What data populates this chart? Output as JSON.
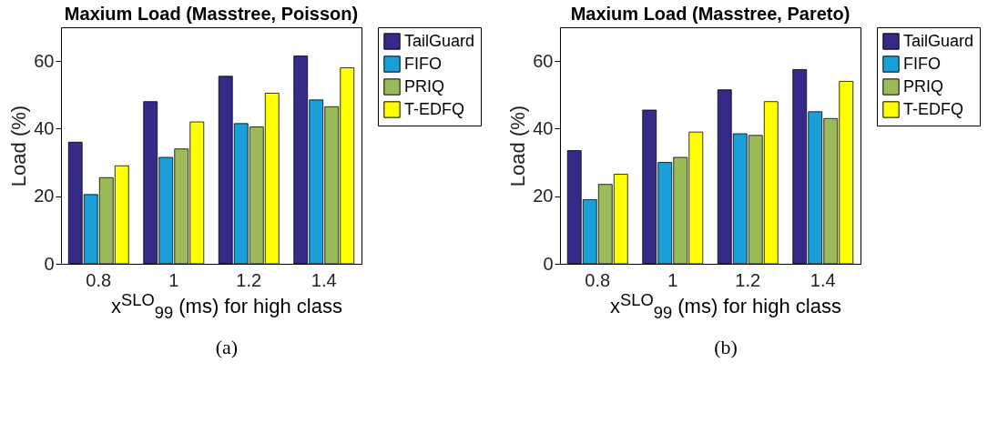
{
  "chart_data": [
    {
      "type": "bar",
      "title": "Maxium Load (Masstree, Poisson)",
      "xlabel": "x$^{SLO}$$_{99}$ (ms) for high class",
      "ylabel": "Load (%)",
      "categories": [
        "0.8",
        "1",
        "1.2",
        "1.4"
      ],
      "ylim": [
        0,
        70
      ],
      "yticks": [
        0,
        20,
        40,
        60
      ],
      "grid": false,
      "legend": "right",
      "annotations": [
        "(a)"
      ],
      "series": [
        {
          "name": "TailGuard",
          "color": "#352a87",
          "values": [
            36,
            48,
            55.5,
            61.5
          ]
        },
        {
          "name": "FIFO",
          "color": "#1a9fd9",
          "values": [
            20.5,
            31.5,
            41.5,
            48.5
          ]
        },
        {
          "name": "PRIQ",
          "color": "#9bbb59",
          "values": [
            25.5,
            34,
            40.5,
            46.5
          ]
        },
        {
          "name": "T-EDFQ",
          "color": "#ffff00",
          "values": [
            29,
            42,
            50.5,
            58
          ]
        }
      ]
    },
    {
      "type": "bar",
      "title": "Maxium Load (Masstree, Pareto)",
      "xlabel": "x$^{SLO}$$_{99}$ (ms) for high class",
      "ylabel": "Load (%)",
      "categories": [
        "0.8",
        "1",
        "1.2",
        "1.4"
      ],
      "ylim": [
        0,
        70
      ],
      "yticks": [
        0,
        20,
        40,
        60
      ],
      "grid": false,
      "legend": "right",
      "annotations": [
        "(b)"
      ],
      "series": [
        {
          "name": "TailGuard",
          "color": "#352a87",
          "values": [
            33.5,
            45.5,
            51.5,
            57.5
          ]
        },
        {
          "name": "FIFO",
          "color": "#1a9fd9",
          "values": [
            19,
            30,
            38.5,
            45
          ]
        },
        {
          "name": "PRIQ",
          "color": "#9bbb59",
          "values": [
            23.5,
            31.5,
            38,
            43
          ]
        },
        {
          "name": "T-EDFQ",
          "color": "#ffff00",
          "values": [
            26.5,
            39,
            48,
            54
          ]
        }
      ]
    }
  ]
}
